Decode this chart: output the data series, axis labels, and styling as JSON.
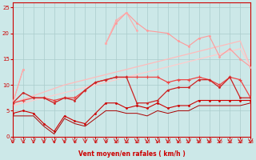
{
  "x": [
    0,
    1,
    2,
    3,
    4,
    5,
    6,
    7,
    8,
    9,
    10,
    11,
    12,
    13,
    14,
    15,
    16,
    17,
    18,
    19,
    20,
    21,
    22,
    23
  ],
  "line_upper_pink": [
    6.5,
    13.0,
    null,
    null,
    null,
    null,
    null,
    null,
    null,
    18.0,
    22.5,
    24.0,
    20.5,
    null,
    null,
    null,
    null,
    null,
    null,
    null,
    null,
    null,
    null,
    null
  ],
  "line_upper_pink2": [
    6.5,
    13.0,
    null,
    null,
    null,
    null,
    null,
    null,
    null,
    18.0,
    22.0,
    24.0,
    22.0,
    20.5,
    null,
    20.0,
    18.5,
    17.5,
    19.0,
    19.5,
    15.5,
    17.0,
    15.0,
    13.5
  ],
  "line_trend1": [
    6.5,
    7.2,
    7.9,
    8.6,
    9.3,
    10.0,
    10.5,
    11.0,
    11.5,
    12.0,
    12.5,
    13.0,
    13.5,
    14.0,
    14.5,
    15.0,
    15.5,
    16.0,
    16.5,
    17.0,
    17.5,
    18.0,
    18.5,
    13.5
  ],
  "line_trend2": [
    6.0,
    6.5,
    7.0,
    7.5,
    8.0,
    8.5,
    9.0,
    9.5,
    10.0,
    10.5,
    11.0,
    11.5,
    12.0,
    12.5,
    13.0,
    13.5,
    14.0,
    14.5,
    15.0,
    15.5,
    16.0,
    16.5,
    17.0,
    13.5
  ],
  "line_mid": [
    6.5,
    7.0,
    7.5,
    7.5,
    7.0,
    7.5,
    7.5,
    9.0,
    10.5,
    11.0,
    11.5,
    11.5,
    11.5,
    11.5,
    11.5,
    10.5,
    11.0,
    11.0,
    11.5,
    11.0,
    10.0,
    11.5,
    11.0,
    7.5
  ],
  "line_jagged_med": [
    6.5,
    8.5,
    7.5,
    7.5,
    6.5,
    7.5,
    7.0,
    9.0,
    10.5,
    11.0,
    11.5,
    11.5,
    6.5,
    6.5,
    7.0,
    9.0,
    9.5,
    9.5,
    11.0,
    11.0,
    9.5,
    11.5,
    7.5,
    7.5
  ],
  "line_low_dark": [
    4.5,
    5.0,
    4.5,
    2.5,
    1.0,
    4.0,
    3.0,
    2.5,
    4.5,
    6.5,
    6.5,
    5.5,
    6.0,
    5.5,
    6.5,
    5.5,
    6.0,
    6.0,
    7.0,
    7.0,
    7.0,
    7.0,
    7.0,
    7.0
  ],
  "line_lowest": [
    4.0,
    4.0,
    4.0,
    2.0,
    0.5,
    3.5,
    2.5,
    2.0,
    3.5,
    5.0,
    5.0,
    4.5,
    4.5,
    4.0,
    5.0,
    4.5,
    5.0,
    5.0,
    6.0,
    6.0,
    6.0,
    6.0,
    6.0,
    6.5
  ],
  "background": "#cce8e8",
  "grid_color": "#aacccc",
  "color_darkred": "#cc0000",
  "color_medred": "#ee3333",
  "color_lightpink": "#ffaaaa",
  "color_salmon": "#ff7777",
  "xlabel": "Vent moyen/en rafales ( km/h )",
  "ylim": [
    0,
    26
  ],
  "xlim": [
    0,
    23
  ],
  "yticks": [
    0,
    5,
    10,
    15,
    20,
    25
  ],
  "xticks": [
    0,
    1,
    2,
    3,
    4,
    5,
    6,
    7,
    8,
    9,
    10,
    11,
    12,
    13,
    14,
    15,
    16,
    17,
    18,
    19,
    20,
    21,
    22,
    23
  ]
}
